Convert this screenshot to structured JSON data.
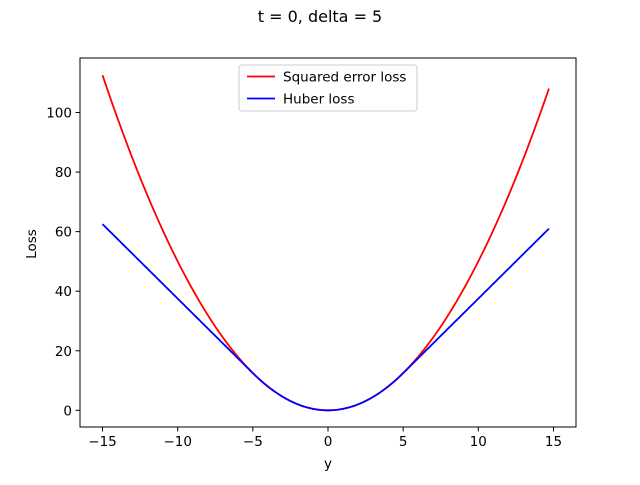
{
  "chart_data": {
    "type": "line",
    "title": "t = 0, delta = 5",
    "xlabel": "y",
    "ylabel": "Loss",
    "xlim": [
      -16.5,
      16.5
    ],
    "ylim": [
      -5.6,
      118.3
    ],
    "x_ticks": [
      -15,
      -10,
      -5,
      0,
      5,
      10,
      15
    ],
    "x_tick_labels": [
      "−15",
      "−10",
      "−5",
      "0",
      "5",
      "10",
      "15"
    ],
    "y_ticks": [
      0,
      20,
      40,
      60,
      80,
      100
    ],
    "y_tick_labels": [
      "0",
      "20",
      "40",
      "60",
      "80",
      "100"
    ],
    "grid": false,
    "legend_position": "upper center",
    "t": 0,
    "delta": 5,
    "x_range": [
      -15,
      14.7
    ],
    "series": [
      {
        "name": "Squared error loss",
        "color": "#ff0000",
        "kind": "squared",
        "points": [
          [
            -15,
            112.5
          ],
          [
            -12.5,
            78.1
          ],
          [
            -10,
            50
          ],
          [
            -7.5,
            28.1
          ],
          [
            -5,
            12.5
          ],
          [
            -2.5,
            3.1
          ],
          [
            0,
            0
          ],
          [
            2.5,
            3.1
          ],
          [
            5,
            12.5
          ],
          [
            7.5,
            28.1
          ],
          [
            10,
            50
          ],
          [
            12.5,
            78.1
          ],
          [
            14.7,
            108
          ]
        ]
      },
      {
        "name": "Huber loss",
        "color": "#0000ff",
        "kind": "huber",
        "points": [
          [
            -15,
            62.5
          ],
          [
            -12.5,
            50
          ],
          [
            -10,
            37.5
          ],
          [
            -7.5,
            25
          ],
          [
            -5,
            12.5
          ],
          [
            -2.5,
            3.1
          ],
          [
            0,
            0
          ],
          [
            2.5,
            3.1
          ],
          [
            5,
            12.5
          ],
          [
            7.5,
            25
          ],
          [
            10,
            37.5
          ],
          [
            12.5,
            50
          ],
          [
            14.7,
            61
          ]
        ]
      }
    ]
  }
}
